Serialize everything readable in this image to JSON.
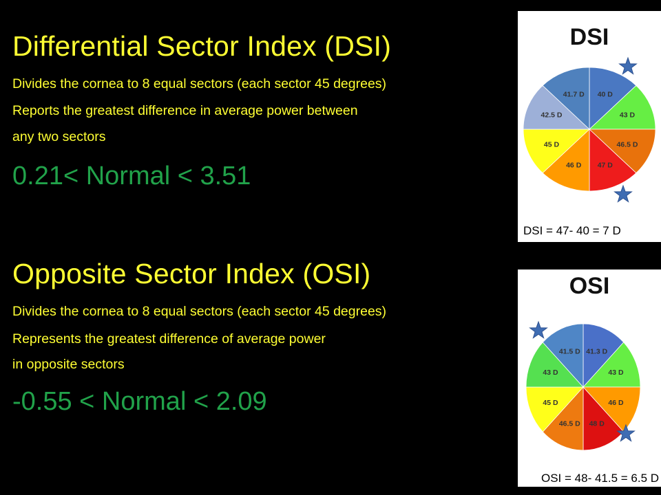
{
  "dsi": {
    "heading": "Differential Sector Index (DSI)",
    "lines": [
      "Divides  the cornea to 8 equal sectors (each sector 45 degrees)",
      "Reports the greatest difference in average power between",
      "any two sectors"
    ],
    "range": "0.21< Normal < 3.51",
    "panel_title": "DSI",
    "formula": "DSI = 47- 40 = 7 D",
    "sectors": [
      {
        "label": "40 D",
        "color": "#4a78c2"
      },
      {
        "label": "43 D",
        "color": "#66ee44"
      },
      {
        "label": "46.5 D",
        "color": "#e8720c"
      },
      {
        "label": "47 D",
        "color": "#ee1c1c"
      },
      {
        "label": "46 D",
        "color": "#ff9a00"
      },
      {
        "label": "45 D",
        "color": "#ffff1a"
      },
      {
        "label": "42.5 D",
        "color": "#9db0d8"
      },
      {
        "label": "41.7 D",
        "color": "#4f81bd"
      }
    ],
    "star_color": "#3f6db3"
  },
  "osi": {
    "heading": "Opposite Sector Index (OSI)",
    "lines": [
      "Divides  the cornea to 8 equal sectors (each sector 45 degrees)",
      "Represents the greatest difference of average power",
      "in opposite sectors"
    ],
    "range": "-0.55 < Normal < 2.09",
    "panel_title": "OSI",
    "formula": "OSI = 48- 41.5 = 6.5 D",
    "sectors": [
      {
        "label": "41.3 D",
        "color": "#4a70c8"
      },
      {
        "label": "43 D",
        "color": "#66ee44"
      },
      {
        "label": "46 D",
        "color": "#ff9a00"
      },
      {
        "label": "48 D",
        "color": "#dd1111"
      },
      {
        "label": "46.5 D",
        "color": "#ee7a10"
      },
      {
        "label": "45 D",
        "color": "#ffff1a"
      },
      {
        "label": "43 D",
        "color": "#55e050"
      },
      {
        "label": "41.5 D",
        "color": "#4f86c6"
      }
    ],
    "star_color": "#3f6db3"
  }
}
